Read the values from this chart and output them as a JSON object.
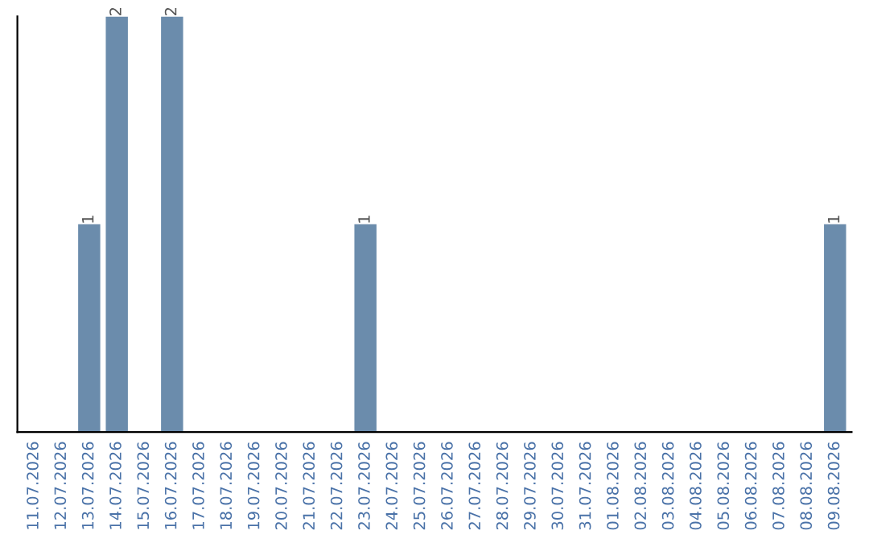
{
  "chart_data": {
    "type": "bar",
    "categories": [
      "11.07.2026",
      "12.07.2026",
      "13.07.2026",
      "14.07.2026",
      "15.07.2026",
      "16.07.2026",
      "17.07.2026",
      "18.07.2026",
      "19.07.2026",
      "20.07.2026",
      "21.07.2026",
      "22.07.2026",
      "23.07.2026",
      "24.07.2026",
      "25.07.2026",
      "26.07.2026",
      "27.07.2026",
      "28.07.2026",
      "29.07.2026",
      "30.07.2026",
      "31.07.2026",
      "01.08.2026",
      "02.08.2026",
      "03.08.2026",
      "04.08.2026",
      "05.08.2026",
      "06.08.2026",
      "07.08.2026",
      "08.08.2026",
      "09.08.2026"
    ],
    "values": [
      0,
      0,
      1,
      2,
      0,
      2,
      0,
      0,
      0,
      0,
      0,
      0,
      1,
      0,
      0,
      0,
      0,
      0,
      0,
      0,
      0,
      0,
      0,
      0,
      0,
      0,
      0,
      0,
      0,
      1
    ],
    "value_labels": [
      null,
      null,
      "1",
      "2",
      null,
      "2",
      null,
      null,
      null,
      null,
      null,
      null,
      "1",
      null,
      null,
      null,
      null,
      null,
      null,
      null,
      null,
      null,
      null,
      null,
      null,
      null,
      null,
      null,
      null,
      "1"
    ],
    "color": "#6b8cac",
    "ylim": [
      0,
      2
    ],
    "tick_labels": "x",
    "grid": false,
    "legend": false
  }
}
